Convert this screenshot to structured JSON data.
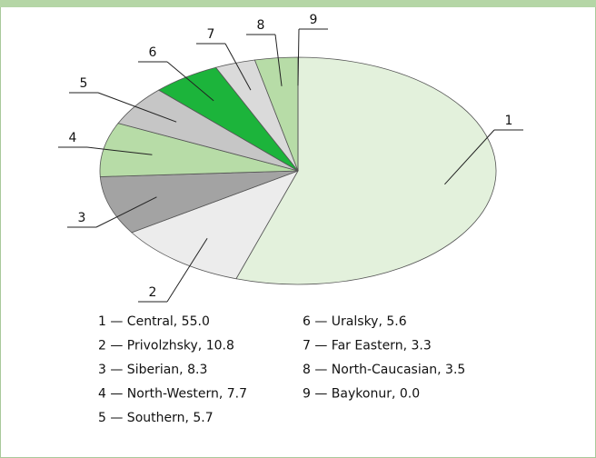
{
  "chart_data": {
    "type": "pie",
    "labels": [
      "1",
      "2",
      "3",
      "4",
      "5",
      "6",
      "7",
      "8",
      "9"
    ],
    "legend": [
      "1 — Central, 55.0",
      "2 — Privolzhsky, 10.8",
      "3 — Siberian, 8.3",
      "4 — North-Western, 7.7",
      "5 — Southern, 5.7",
      "6 — Uralsky, 5.6",
      "7 — Far Eastern, 3.3",
      "8 — North-Caucasian, 3.5",
      "9 — Baykonur, 0.0"
    ],
    "values": [
      55.0,
      10.8,
      8.3,
      7.7,
      5.7,
      5.6,
      3.3,
      3.5,
      0.0
    ],
    "colors": [
      "#e3f1dc",
      "#ececec",
      "#a3a3a3",
      "#b7dca7",
      "#c6c6c6",
      "#1cb43b",
      "#dadada",
      "#b7dca7",
      "#b7dca7"
    ]
  }
}
